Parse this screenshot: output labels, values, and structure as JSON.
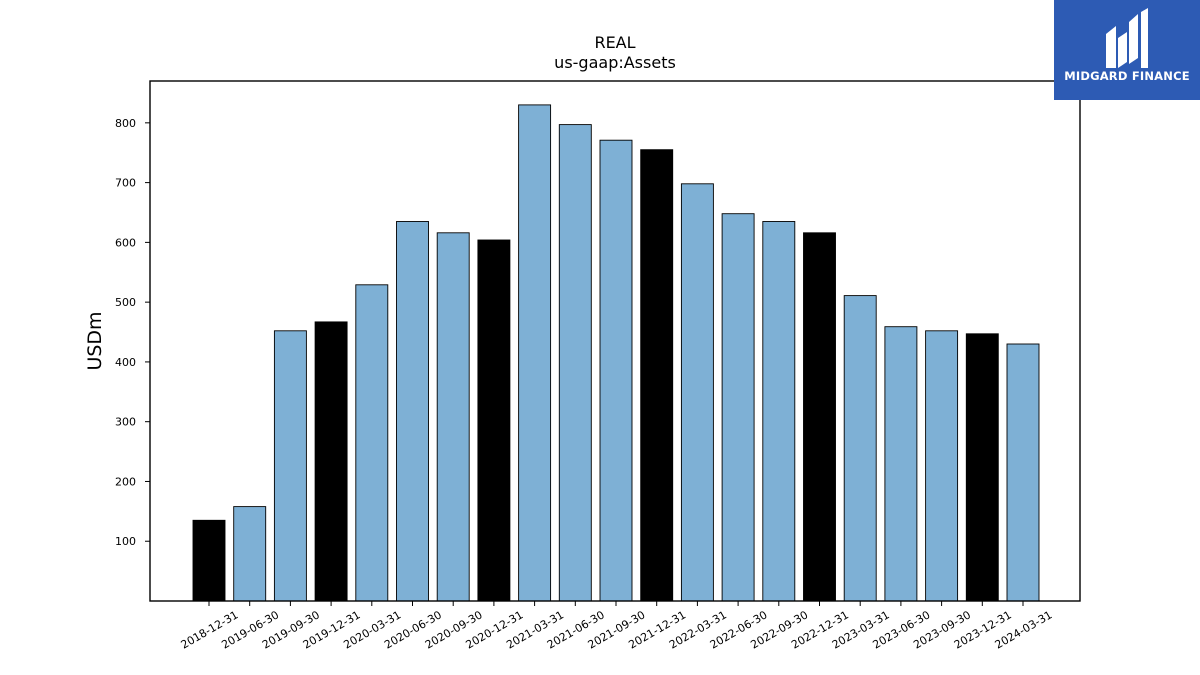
{
  "chart_data": {
    "type": "bar",
    "title": "REAL",
    "subtitle": "us-gaap:Assets",
    "ylabel": "USDm",
    "xlabel": "",
    "ylim": [
      0,
      870
    ],
    "yticks": [
      100,
      200,
      300,
      400,
      500,
      600,
      700,
      800
    ],
    "categories": [
      "2018-12-31",
      "2019-06-30",
      "2019-09-30",
      "2019-12-31",
      "2020-03-31",
      "2020-06-30",
      "2020-09-30",
      "2020-12-31",
      "2021-03-31",
      "2021-06-30",
      "2021-09-30",
      "2021-12-31",
      "2022-03-31",
      "2022-06-30",
      "2022-09-30",
      "2022-12-31",
      "2023-03-31",
      "2023-06-30",
      "2023-09-30",
      "2023-12-31",
      "2024-03-31"
    ],
    "values": [
      135,
      158,
      452,
      467,
      529,
      635,
      616,
      604,
      830,
      797,
      771,
      755,
      698,
      648,
      635,
      616,
      511,
      459,
      452,
      447,
      430
    ],
    "bar_colors": [
      "#000000",
      "#7eb0d5",
      "#7eb0d5",
      "#000000",
      "#7eb0d5",
      "#7eb0d5",
      "#7eb0d5",
      "#000000",
      "#7eb0d5",
      "#7eb0d5",
      "#7eb0d5",
      "#000000",
      "#7eb0d5",
      "#7eb0d5",
      "#7eb0d5",
      "#000000",
      "#7eb0d5",
      "#7eb0d5",
      "#7eb0d5",
      "#000000",
      "#7eb0d5"
    ],
    "colors": {
      "quarter": "#7eb0d5",
      "year_end": "#000000"
    },
    "grid": false,
    "legend": "none"
  },
  "logo": {
    "text": "MIDGARD FINANCE",
    "background": "#2d5bb4",
    "icon": "midgard-logo-icon"
  }
}
